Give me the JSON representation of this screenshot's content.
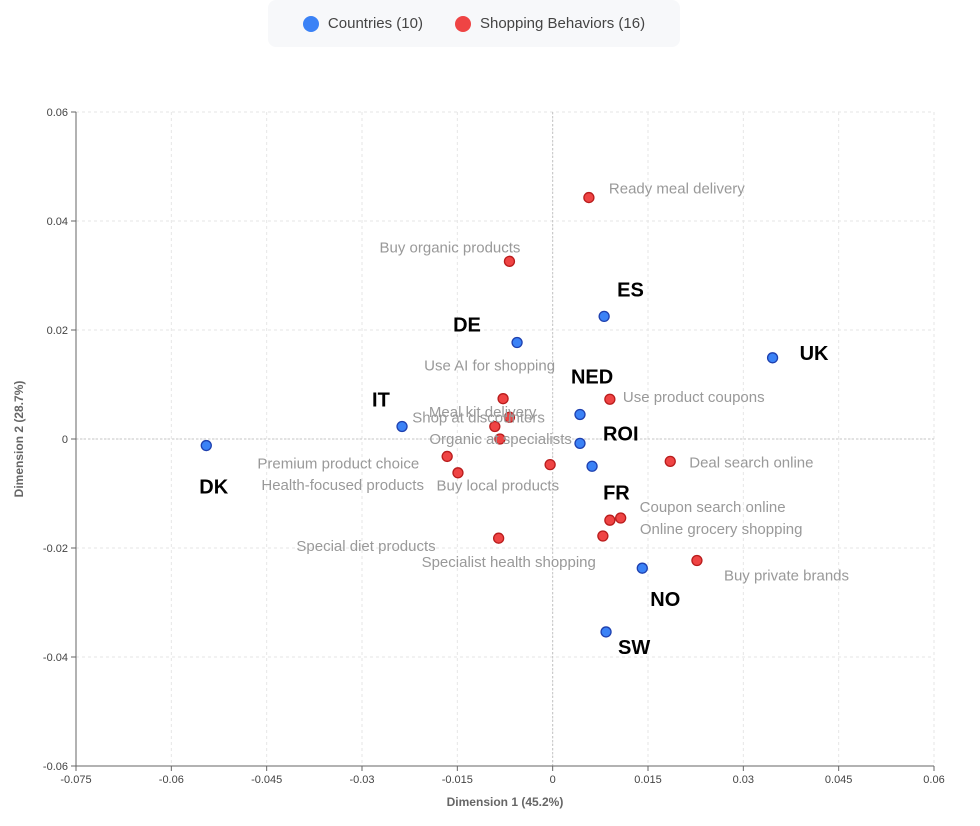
{
  "legend": {
    "countries_label": "Countries (10)",
    "behaviors_label": "Shopping Behaviors (16)"
  },
  "chart_data": {
    "type": "scatter",
    "title": "",
    "xlabel": "Dimension 1 (45.2%)",
    "ylabel": "Dimension 2 (28.7%)",
    "xlim": [
      -0.075,
      0.06
    ],
    "ylim": [
      -0.06,
      0.06
    ],
    "xticks": [
      "-0.075",
      "-0.06",
      "-0.045",
      "-0.03",
      "-0.015",
      "0",
      "0.015",
      "0.03",
      "0.045",
      "0.06"
    ],
    "yticks": [
      "0.06",
      "0.04",
      "0.02",
      "0",
      "-0.02",
      "-0.04",
      "-0.06"
    ],
    "grid": true,
    "colors": {
      "countries": "#3b82f6",
      "behaviors": "#ef4444",
      "countries_stroke": "#1e40af",
      "behaviors_stroke": "#b91c1c"
    },
    "series": [
      {
        "name": "Countries (10)",
        "points": [
          {
            "label": "DK",
            "x": -0.0545,
            "y": -0.0012
          },
          {
            "label": "IT",
            "x": -0.0237,
            "y": 0.0023
          },
          {
            "label": "DE",
            "x": -0.0056,
            "y": 0.0177
          },
          {
            "label": "ES",
            "x": 0.0081,
            "y": 0.0225
          },
          {
            "label": "UK",
            "x": 0.0346,
            "y": 0.0149
          },
          {
            "label": "NED",
            "x": 0.0043,
            "y": 0.0045
          },
          {
            "label": "ROI",
            "x": 0.0043,
            "y": -0.0008
          },
          {
            "label": "FR",
            "x": 0.0062,
            "y": -0.005
          },
          {
            "label": "NO",
            "x": 0.0141,
            "y": -0.0237
          },
          {
            "label": "SW",
            "x": 0.0084,
            "y": -0.0354
          }
        ]
      },
      {
        "name": "Shopping Behaviors (16)",
        "points": [
          {
            "label": "Ready meal delivery",
            "x": 0.0057,
            "y": 0.0443
          },
          {
            "label": "Buy organic products",
            "x": -0.0068,
            "y": 0.0326
          },
          {
            "label": "Use AI for shopping",
            "x": -0.0078,
            "y": 0.0074
          },
          {
            "label": "Meal kit delivery",
            "x": -0.0068,
            "y": 0.004
          },
          {
            "label": "Shop at discounters",
            "x": -0.0091,
            "y": 0.0023
          },
          {
            "label": "Organic at specialists",
            "x": -0.0083,
            "y": 0.0
          },
          {
            "label": "Premium product choice",
            "x": -0.0166,
            "y": -0.0032
          },
          {
            "label": "Health-focused products",
            "x": -0.0149,
            "y": -0.0062
          },
          {
            "label": "Buy local products",
            "x": -0.0004,
            "y": -0.0047
          },
          {
            "label": "Use product coupons",
            "x": 0.009,
            "y": 0.0073
          },
          {
            "label": "Deal search online",
            "x": 0.0185,
            "y": -0.0041
          },
          {
            "label": "Coupon search online",
            "x": 0.0107,
            "y": -0.0145
          },
          {
            "label": "Online grocery shopping",
            "x": 0.009,
            "y": -0.0149
          },
          {
            "label": "Specialist health shopping",
            "x": 0.0079,
            "y": -0.0178
          },
          {
            "label": "Special diet products",
            "x": -0.0085,
            "y": -0.0182
          },
          {
            "label": "Buy private brands",
            "x": 0.0227,
            "y": -0.0223
          }
        ]
      }
    ]
  }
}
